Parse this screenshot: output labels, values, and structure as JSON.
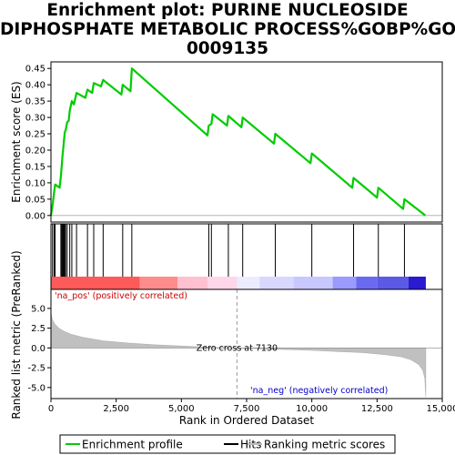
{
  "chart_data": {
    "type": "line",
    "title_lines": [
      "Enrichment plot: PURINE NUCLEOSIDE",
      "DIPHOSPHATE METABOLIC PROCESS%GOBP%GO:",
      "0009135"
    ],
    "es_panel": {
      "ylabel": "Enrichment score (ES)",
      "ylim": [
        -0.02,
        0.47
      ],
      "yticks": [
        0.0,
        0.05,
        0.1,
        0.15,
        0.2,
        0.25,
        0.3,
        0.35,
        0.4,
        0.45
      ],
      "ytick_labels": [
        "0.00",
        "0.05",
        "0.10",
        "0.15",
        "0.20",
        "0.25",
        "0.30",
        "0.35",
        "0.40",
        "0.45"
      ],
      "line_color": "#00cc00",
      "profile": [
        {
          "x": 0,
          "y": 0.0
        },
        {
          "x": 60,
          "y": 0.03
        },
        {
          "x": 120,
          "y": 0.07
        },
        {
          "x": 160,
          "y": 0.095
        },
        {
          "x": 330,
          "y": 0.085
        },
        {
          "x": 380,
          "y": 0.12
        },
        {
          "x": 410,
          "y": 0.15
        },
        {
          "x": 440,
          "y": 0.18
        },
        {
          "x": 470,
          "y": 0.205
        },
        {
          "x": 500,
          "y": 0.23
        },
        {
          "x": 530,
          "y": 0.255
        },
        {
          "x": 560,
          "y": 0.26
        },
        {
          "x": 620,
          "y": 0.285
        },
        {
          "x": 680,
          "y": 0.29
        },
        {
          "x": 720,
          "y": 0.32
        },
        {
          "x": 800,
          "y": 0.35
        },
        {
          "x": 880,
          "y": 0.34
        },
        {
          "x": 980,
          "y": 0.375
        },
        {
          "x": 1320,
          "y": 0.36
        },
        {
          "x": 1400,
          "y": 0.385
        },
        {
          "x": 1580,
          "y": 0.375
        },
        {
          "x": 1640,
          "y": 0.405
        },
        {
          "x": 1920,
          "y": 0.395
        },
        {
          "x": 2000,
          "y": 0.415
        },
        {
          "x": 2700,
          "y": 0.37
        },
        {
          "x": 2750,
          "y": 0.4
        },
        {
          "x": 3050,
          "y": 0.38
        },
        {
          "x": 3100,
          "y": 0.45
        },
        {
          "x": 6000,
          "y": 0.245
        },
        {
          "x": 6050,
          "y": 0.275
        },
        {
          "x": 6150,
          "y": 0.28
        },
        {
          "x": 6200,
          "y": 0.31
        },
        {
          "x": 6750,
          "y": 0.275
        },
        {
          "x": 6800,
          "y": 0.305
        },
        {
          "x": 7300,
          "y": 0.27
        },
        {
          "x": 7350,
          "y": 0.3
        },
        {
          "x": 8550,
          "y": 0.22
        },
        {
          "x": 8600,
          "y": 0.25
        },
        {
          "x": 9950,
          "y": 0.16
        },
        {
          "x": 10000,
          "y": 0.19
        },
        {
          "x": 11550,
          "y": 0.085
        },
        {
          "x": 11600,
          "y": 0.115
        },
        {
          "x": 12500,
          "y": 0.055
        },
        {
          "x": 12550,
          "y": 0.085
        },
        {
          "x": 13500,
          "y": 0.02
        },
        {
          "x": 13550,
          "y": 0.05
        },
        {
          "x": 14350,
          "y": 0.0
        }
      ]
    },
    "hits": [
      60,
      120,
      160,
      380,
      410,
      440,
      460,
      480,
      500,
      530,
      560,
      620,
      720,
      800,
      980,
      1400,
      1640,
      2000,
      2750,
      3100,
      6050,
      6150,
      6800,
      7350,
      8600,
      10000,
      11600,
      12550,
      13550
    ],
    "ranked_panel": {
      "ylabel": "Ranked list metric (PreRanked)",
      "ylim": [
        -6.4,
        7.4
      ],
      "yticks": [
        -5.0,
        -2.5,
        0.0,
        2.5,
        5.0
      ],
      "ytick_labels": [
        "-5.0",
        "-2.5",
        "0.0",
        "2.5",
        "5.0"
      ],
      "curve": [
        {
          "x": 0,
          "y": 4.4
        },
        {
          "x": 50,
          "y": 3.6
        },
        {
          "x": 150,
          "y": 3.0
        },
        {
          "x": 300,
          "y": 2.5
        },
        {
          "x": 500,
          "y": 2.1
        },
        {
          "x": 800,
          "y": 1.7
        },
        {
          "x": 1200,
          "y": 1.35
        },
        {
          "x": 2000,
          "y": 0.9
        },
        {
          "x": 3000,
          "y": 0.6
        },
        {
          "x": 4000,
          "y": 0.4
        },
        {
          "x": 5000,
          "y": 0.25
        },
        {
          "x": 6000,
          "y": 0.1
        },
        {
          "x": 7130,
          "y": 0.0
        },
        {
          "x": 8000,
          "y": -0.1
        },
        {
          "x": 9000,
          "y": -0.2
        },
        {
          "x": 10000,
          "y": -0.3
        },
        {
          "x": 11000,
          "y": -0.45
        },
        {
          "x": 12000,
          "y": -0.6
        },
        {
          "x": 12800,
          "y": -0.85
        },
        {
          "x": 13400,
          "y": -1.1
        },
        {
          "x": 13800,
          "y": -1.5
        },
        {
          "x": 14100,
          "y": -2.1
        },
        {
          "x": 14250,
          "y": -2.8
        },
        {
          "x": 14330,
          "y": -3.8
        },
        {
          "x": 14370,
          "y": -6.2
        }
      ],
      "zero_cross_x": 7130,
      "zero_cross_label": "Zero cross at 7130",
      "pos_label": "'na_pos' (positively correlated)",
      "neg_label": "'na_neg' (negatively correlated)",
      "pos_color": "#cc0000",
      "neg_color": "#0000cc"
    },
    "color_bar": {
      "segments": [
        {
          "from": 0,
          "to": 3400,
          "color": "#ff5a5a"
        },
        {
          "from": 3400,
          "to": 4850,
          "color": "#ff8c8c"
        },
        {
          "from": 4850,
          "to": 6000,
          "color": "#ffc0d0"
        },
        {
          "from": 6000,
          "to": 7130,
          "color": "#ffd6ea"
        },
        {
          "from": 7130,
          "to": 8000,
          "color": "#ececff"
        },
        {
          "from": 8000,
          "to": 9300,
          "color": "#d8d8ff"
        },
        {
          "from": 9300,
          "to": 10800,
          "color": "#c8c8ff"
        },
        {
          "from": 10800,
          "to": 11700,
          "color": "#9a9aff"
        },
        {
          "from": 11700,
          "to": 12500,
          "color": "#6a6af0"
        },
        {
          "from": 12500,
          "to": 13700,
          "color": "#5a5ae6"
        },
        {
          "from": 13700,
          "to": 14370,
          "color": "#2a1ad0"
        }
      ]
    },
    "xaxis": {
      "label": "Rank in Ordered Dataset",
      "xlim": [
        0,
        15000
      ],
      "xticks": [
        0,
        2500,
        5000,
        7500,
        10000,
        12500,
        15000
      ],
      "xtick_labels": [
        "0",
        "2,500",
        "5,000",
        "7,500",
        "10,000",
        "12,500",
        "15,000"
      ]
    },
    "legend": {
      "placement": "bottom",
      "entries": [
        {
          "label": "Enrichment profile",
          "color": "#00cc00"
        },
        {
          "label": "Hits",
          "color": "#000000"
        },
        {
          "label": "Ranking metric scores",
          "color": "#bbbbbb"
        }
      ]
    }
  }
}
